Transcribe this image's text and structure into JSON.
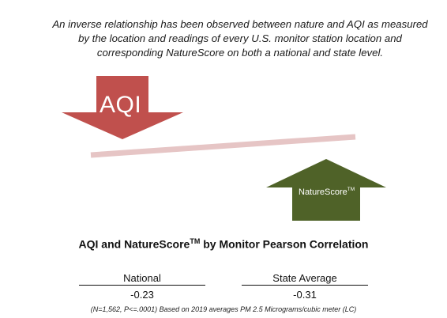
{
  "intro_text": "An inverse relationship has been observed between nature and AQI as measured by the location and readings of every U.S. monitor station location and corresponding NatureScore on both a national and state level.",
  "aqi_arrow": {
    "label": "AQI",
    "direction": "down",
    "color": "#c0504d",
    "icon": "down-arrow"
  },
  "naturescore_arrow": {
    "label": "NatureScore",
    "label_superscript": "TM",
    "direction": "up",
    "color": "#4f6228",
    "icon": "up-arrow"
  },
  "trend_line": {
    "color": "#e6c5c5",
    "direction": "rising"
  },
  "title": {
    "main": "AQI and NatureScore",
    "superscript": "TM",
    "rest": " by Monitor Pearson Correlation"
  },
  "correlations": [
    {
      "label": "National",
      "value": "-0.23"
    },
    {
      "label": "State Average",
      "value": "-0.31"
    }
  ],
  "footnote": "(N=1,562, P<=.0001)  Based on 2019 averages PM 2.5 Micrograms/cubic meter (LC)"
}
